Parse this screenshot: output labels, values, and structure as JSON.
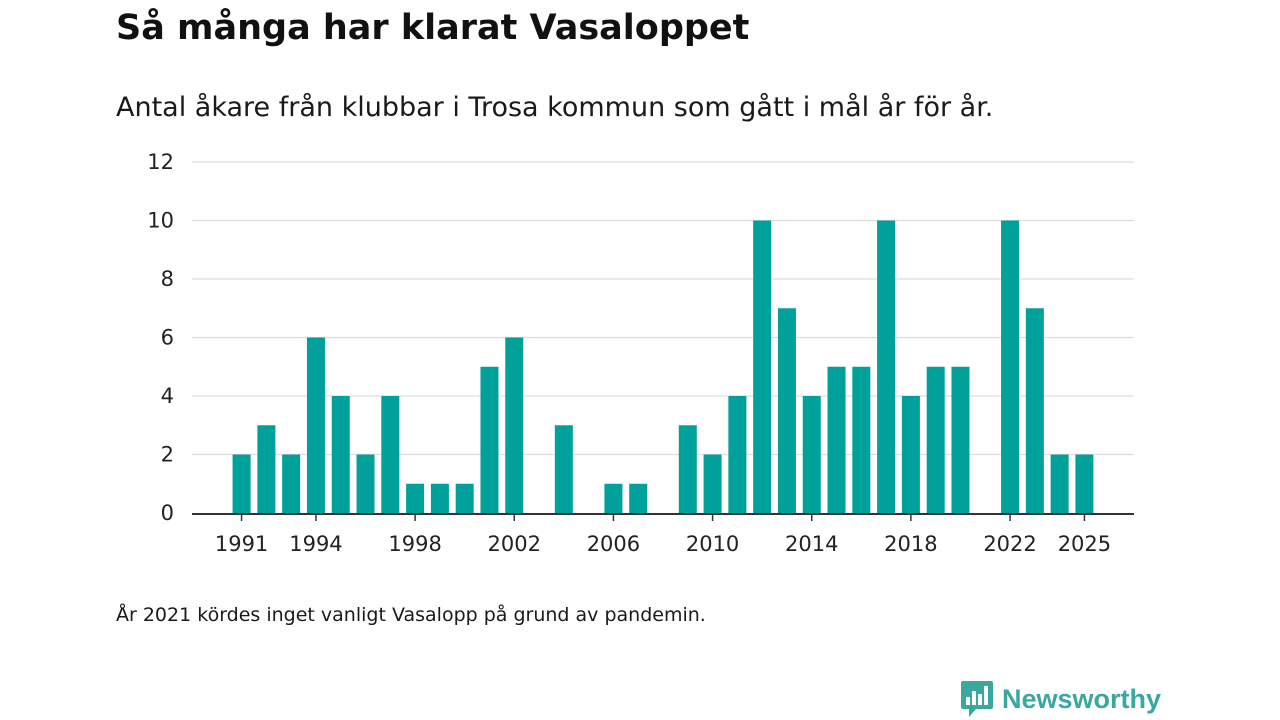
{
  "title": "Så många har klarat Vasaloppet",
  "subtitle": "Antal åkare från klubbar i Trosa kommun som gått i mål år för år.",
  "footnote": "År 2021 kördes inget vanligt Vasalopp på grund av pandemin.",
  "brand": {
    "name": "Newsworthy",
    "icon": "newsworthy-logo-icon",
    "color": "#3aa8a0"
  },
  "colors": {
    "bar": "#00a19a",
    "grid": "#dddddd",
    "axis": "#333333",
    "text": "#222222"
  },
  "chart_data": {
    "type": "bar",
    "title": "Så många har klarat Vasaloppet",
    "subtitle": "Antal åkare från klubbar i Trosa kommun som gått i mål år för år.",
    "xlabel": "",
    "ylabel": "",
    "ylim": [
      0,
      12
    ],
    "xlim": [
      1989,
      2027
    ],
    "yticks": [
      0,
      2,
      4,
      6,
      8,
      10,
      12
    ],
    "xticks": [
      1991,
      1994,
      1998,
      2002,
      2006,
      2010,
      2014,
      2018,
      2022,
      2025
    ],
    "grid": true,
    "x": [
      1991,
      1992,
      1993,
      1994,
      1995,
      1996,
      1997,
      1998,
      1999,
      2000,
      2001,
      2002,
      2004,
      2006,
      2007,
      2009,
      2010,
      2011,
      2012,
      2013,
      2014,
      2015,
      2016,
      2017,
      2018,
      2019,
      2020,
      2022,
      2023,
      2024,
      2025
    ],
    "values": [
      2,
      3,
      2,
      6,
      4,
      2,
      4,
      1,
      1,
      1,
      5,
      6,
      3,
      1,
      1,
      3,
      2,
      4,
      10,
      7,
      4,
      5,
      5,
      10,
      4,
      5,
      5,
      10,
      7,
      2,
      2
    ]
  }
}
